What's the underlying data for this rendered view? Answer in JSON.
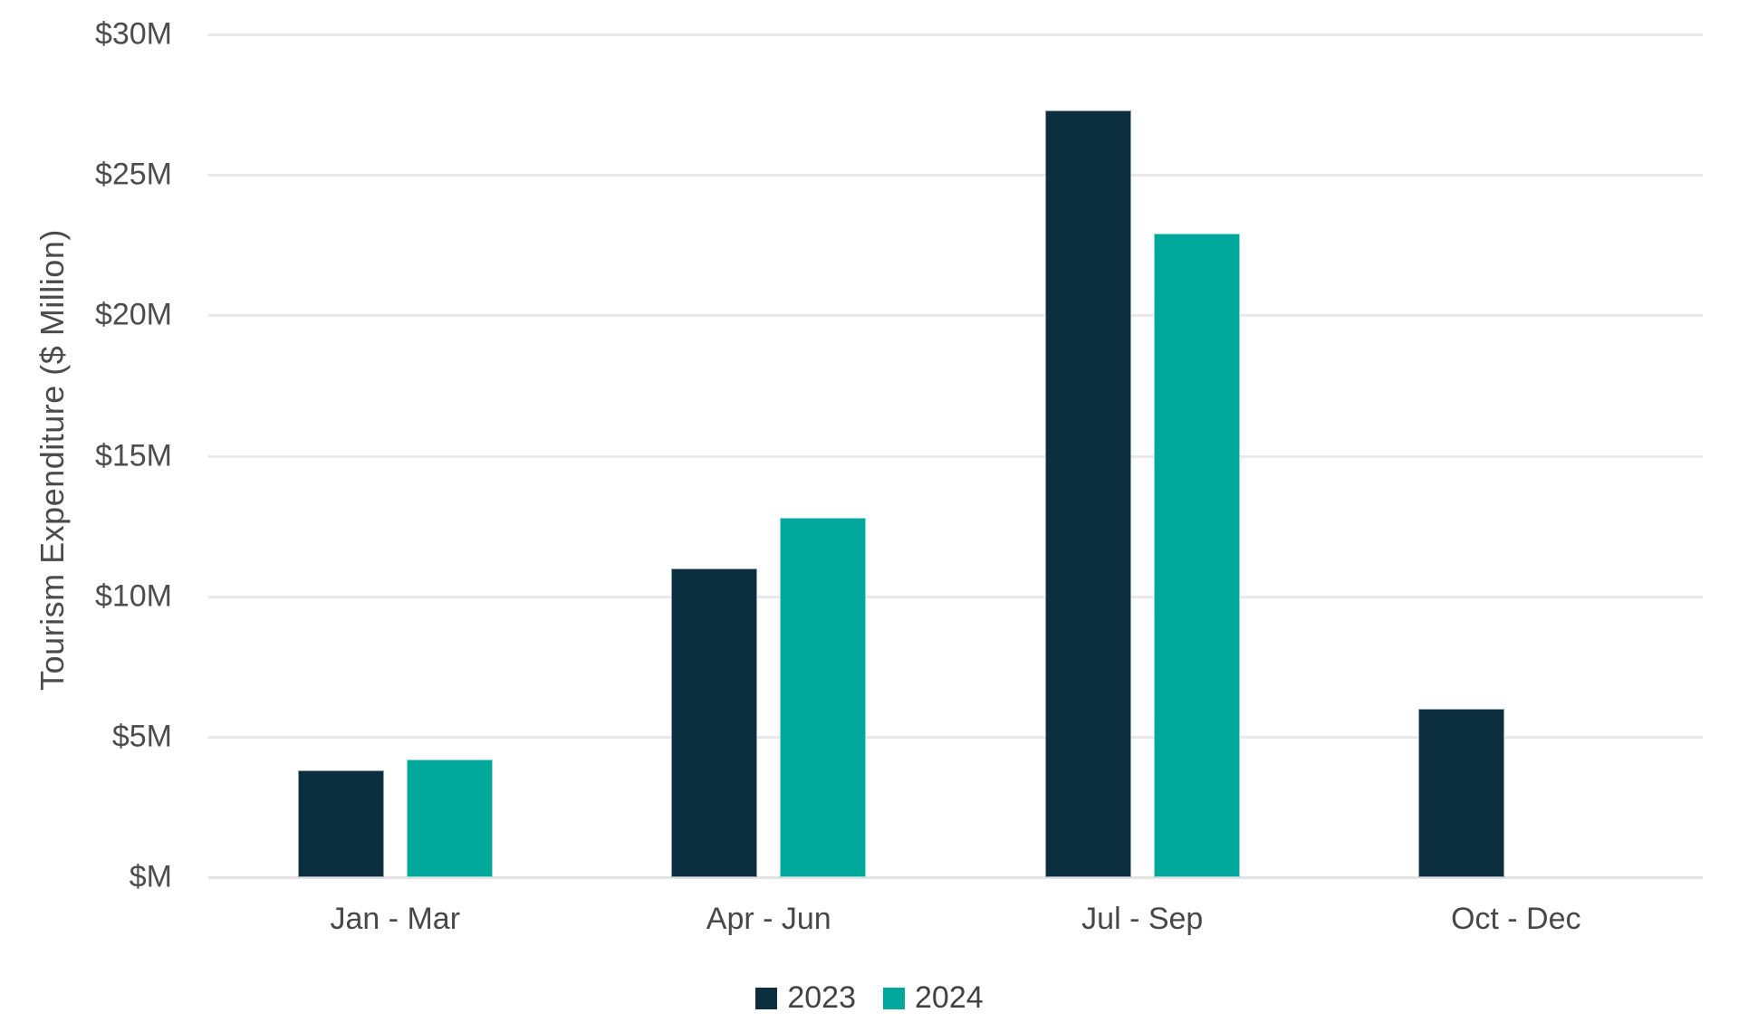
{
  "chart_data": {
    "type": "bar",
    "title": "",
    "categories": [
      "Jan - Mar",
      "Apr - Jun",
      "Jul - Sep",
      "Oct - Dec"
    ],
    "series": [
      {
        "name": "2023",
        "color": "#0C2F40",
        "values": [
          3.8,
          11.0,
          27.3,
          6.0
        ]
      },
      {
        "name": "2024",
        "color": "#00A79B",
        "values": [
          4.2,
          12.8,
          22.9,
          0
        ]
      }
    ],
    "xlabel": "",
    "ylabel": "Tourism Expenditure ($ Million)",
    "ylim": [
      0,
      30
    ],
    "ytick_step": 5,
    "ytick_labels": [
      "$M",
      "$5M",
      "$10M",
      "$15M",
      "$20M",
      "$25M",
      "$30M"
    ],
    "grid": "horizontal-only",
    "legend_position": "bottom-center",
    "colors": {
      "background": "#FFFFFF",
      "gridline": "#E9E9E9",
      "axis_text": "#4D4D4D"
    }
  }
}
